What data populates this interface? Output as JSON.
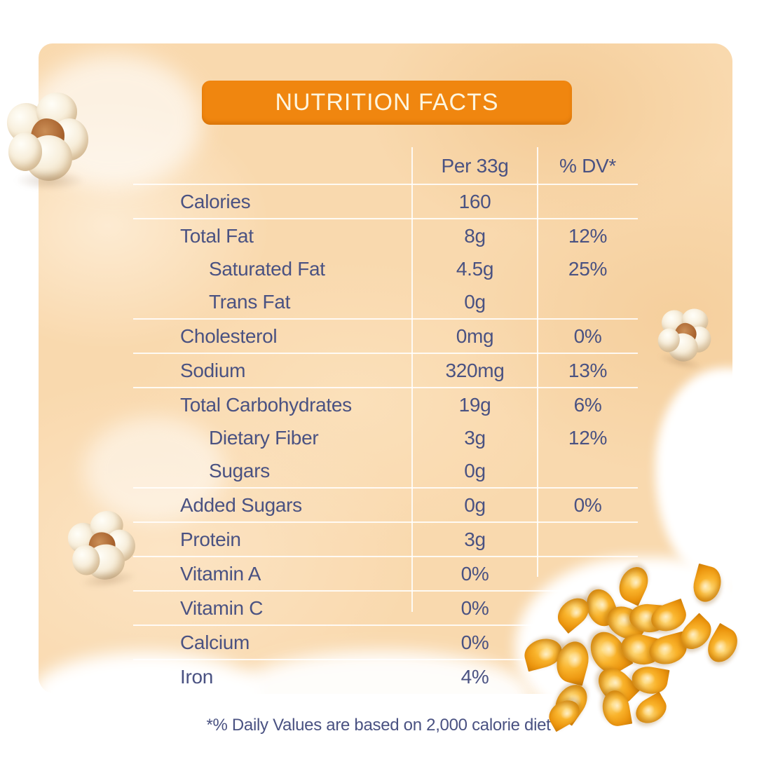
{
  "title": "NUTRITION FACTS",
  "columns": {
    "serving": "Per 33g",
    "daily_value": "% DV*"
  },
  "rows": [
    {
      "label": "Calories",
      "value": "160",
      "dv": "",
      "indent": false,
      "line_below": true
    },
    {
      "label": "Total Fat",
      "value": "8g",
      "dv": "12%",
      "indent": false,
      "line_below": false
    },
    {
      "label": "Saturated Fat",
      "value": "4.5g",
      "dv": "25%",
      "indent": true,
      "line_below": false
    },
    {
      "label": "Trans Fat",
      "value": "0g",
      "dv": "",
      "indent": true,
      "line_below": true
    },
    {
      "label": "Cholesterol",
      "value": "0mg",
      "dv": "0%",
      "indent": false,
      "line_below": true
    },
    {
      "label": "Sodium",
      "value": "320mg",
      "dv": "13%",
      "indent": false,
      "line_below": true
    },
    {
      "label": "Total Carbohydrates",
      "value": "19g",
      "dv": "6%",
      "indent": false,
      "line_below": false
    },
    {
      "label": "Dietary Fiber",
      "value": "3g",
      "dv": "12%",
      "indent": true,
      "line_below": false
    },
    {
      "label": "Sugars",
      "value": "0g",
      "dv": "",
      "indent": true,
      "line_below": true
    },
    {
      "label": "Added Sugars",
      "value": "0g",
      "dv": "0%",
      "indent": false,
      "line_below": true
    },
    {
      "label": "Protein",
      "value": "3g",
      "dv": "",
      "indent": false,
      "line_below": true
    },
    {
      "label": "Vitamin A",
      "value": "0%",
      "dv": "",
      "indent": false,
      "line_below": true
    },
    {
      "label": "Vitamin C",
      "value": "0%",
      "dv": "",
      "indent": false,
      "line_below": true
    },
    {
      "label": "Calcium",
      "value": "0%",
      "dv": "",
      "indent": false,
      "line_below": true
    },
    {
      "label": "Iron",
      "value": "4%",
      "dv": "",
      "indent": false,
      "line_below": false
    }
  ],
  "footnote": "*% Daily Values are based on 2,000 calorie diet",
  "icons": {
    "popcorn": "popcorn-icon",
    "corn_kernel": "corn-kernel-icon"
  },
  "colors": {
    "header-bg": "#f0860f",
    "header-text": "#fdf5df",
    "ink": "#4a5282",
    "wash": "#f9d9ae",
    "line": "rgba(255,255,255,0.85)",
    "kernel-gold": "#f9b32b",
    "popcorn-cream": "#f8efdc"
  }
}
